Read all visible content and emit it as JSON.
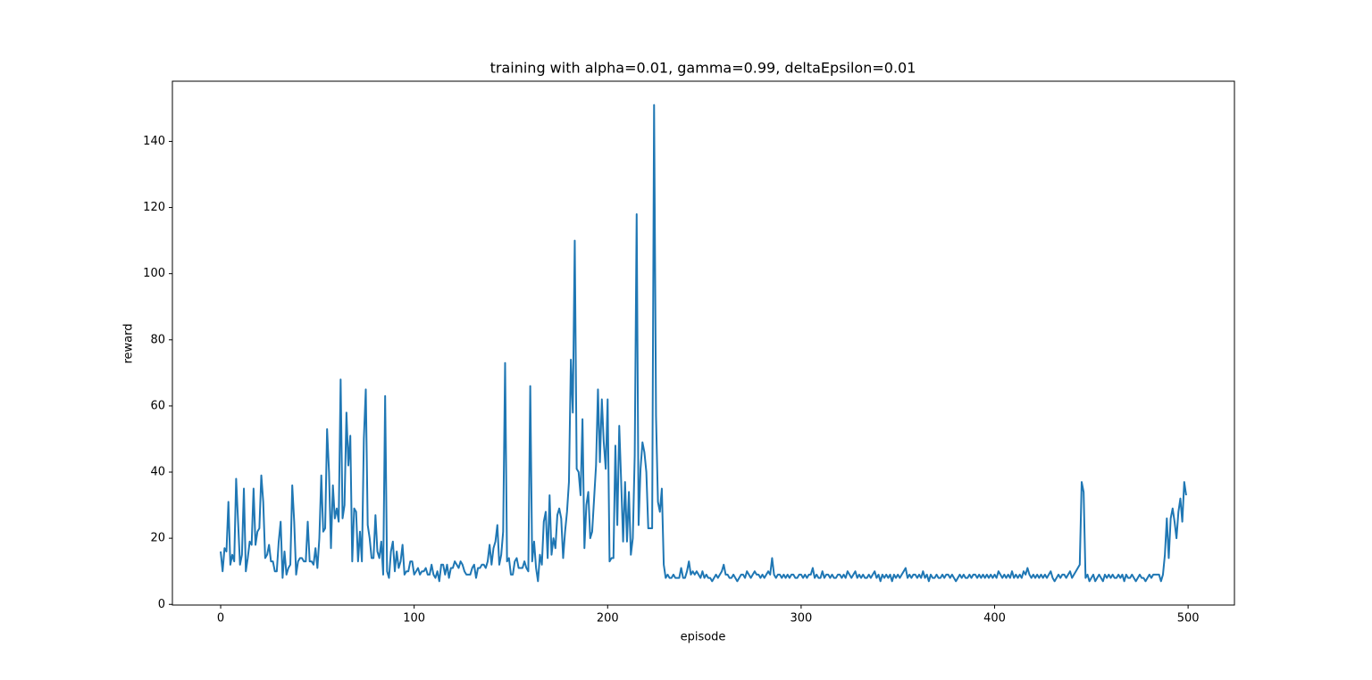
{
  "chart_data": {
    "type": "line",
    "title": "training with alpha=0.01, gamma=0.99, deltaEpsilon=0.01",
    "xlabel": "episode",
    "ylabel": "reward",
    "color": "#1f77b4",
    "xlim": [
      -24.95,
      523.95
    ],
    "xticks": [
      0,
      100,
      200,
      300,
      400,
      500
    ],
    "ylim": [
      -0.2,
      158.2
    ],
    "yticks": [
      0,
      20,
      40,
      60,
      80,
      100,
      120,
      140
    ],
    "values": [
      16,
      10,
      17,
      16,
      31,
      12,
      15,
      13,
      38,
      25,
      12,
      15,
      35,
      10,
      14,
      19,
      18,
      35,
      18,
      22,
      23,
      39,
      31,
      14,
      15,
      18,
      13,
      13,
      10,
      10,
      19,
      25,
      8,
      16,
      9,
      11,
      12,
      36,
      25,
      9,
      13,
      14,
      14,
      13,
      13,
      25,
      13,
      13,
      12,
      17,
      11,
      20,
      39,
      22,
      23,
      53,
      40,
      17,
      36,
      26,
      29,
      25,
      68,
      26,
      30,
      58,
      42,
      51,
      13,
      29,
      28,
      13,
      22,
      13,
      50,
      65,
      24,
      20,
      14,
      14,
      27,
      16,
      14,
      19,
      9,
      63,
      10,
      8,
      16,
      19,
      10,
      16,
      11,
      13,
      18,
      9,
      10,
      10,
      13,
      13,
      9,
      10,
      11,
      9,
      10,
      10,
      11,
      9,
      9,
      12,
      9,
      8,
      10,
      7,
      12,
      12,
      9,
      12,
      8,
      11,
      11,
      13,
      12,
      11,
      13,
      12,
      10,
      9,
      9,
      9,
      11,
      12,
      8,
      11,
      11,
      12,
      12,
      11,
      13,
      18,
      12,
      17,
      19,
      24,
      12,
      15,
      22,
      73,
      13,
      14,
      9,
      9,
      13,
      14,
      11,
      11,
      11,
      13,
      11,
      10,
      66,
      13,
      19,
      11,
      7,
      15,
      12,
      25,
      28,
      14,
      33,
      15,
      20,
      17,
      27,
      29,
      26,
      14,
      22,
      28,
      37,
      74,
      58,
      110,
      41,
      40,
      33,
      56,
      17,
      30,
      34,
      20,
      22,
      32,
      42,
      65,
      43,
      62,
      49,
      41,
      62,
      13,
      14,
      14,
      48,
      24,
      54,
      37,
      19,
      37,
      19,
      34,
      15,
      20,
      45,
      118,
      24,
      41,
      49,
      46,
      40,
      23,
      23,
      23,
      151,
      57,
      31,
      28,
      35,
      12,
      8,
      9,
      8,
      8,
      9,
      8,
      8,
      8,
      11,
      8,
      8,
      10,
      13,
      9,
      10,
      9,
      10,
      9,
      8,
      10,
      8,
      9,
      8,
      8,
      7,
      8,
      9,
      8,
      9,
      10,
      12,
      9,
      9,
      8,
      8,
      9,
      8,
      7,
      8,
      9,
      9,
      8,
      10,
      9,
      8,
      9,
      10,
      9,
      9,
      8,
      9,
      8,
      9,
      10,
      9,
      14,
      9,
      8,
      9,
      9,
      8,
      9,
      8,
      9,
      8,
      9,
      9,
      8,
      8,
      9,
      9,
      8,
      9,
      8,
      9,
      9,
      11,
      8,
      9,
      8,
      8,
      10,
      8,
      9,
      9,
      8,
      9,
      8,
      8,
      9,
      9,
      8,
      9,
      8,
      10,
      9,
      8,
      9,
      10,
      8,
      9,
      8,
      9,
      8,
      8,
      9,
      8,
      9,
      10,
      8,
      9,
      7,
      9,
      8,
      9,
      8,
      9,
      7,
      9,
      8,
      9,
      8,
      9,
      10,
      11,
      8,
      9,
      8,
      9,
      9,
      8,
      9,
      8,
      10,
      8,
      9,
      7,
      9,
      8,
      8,
      9,
      8,
      8,
      9,
      8,
      9,
      9,
      8,
      9,
      8,
      7,
      8,
      9,
      8,
      9,
      8,
      8,
      9,
      8,
      9,
      9,
      8,
      9,
      8,
      9,
      8,
      9,
      8,
      9,
      8,
      9,
      8,
      10,
      9,
      8,
      9,
      8,
      9,
      8,
      10,
      8,
      9,
      8,
      9,
      8,
      10,
      9,
      11,
      9,
      8,
      9,
      8,
      9,
      8,
      9,
      8,
      9,
      8,
      9,
      10,
      8,
      7,
      8,
      9,
      8,
      9,
      9,
      8,
      9,
      10,
      8,
      9,
      10,
      11,
      12,
      37,
      34,
      8,
      9,
      7,
      8,
      9,
      7,
      8,
      9,
      8,
      7,
      9,
      8,
      9,
      8,
      9,
      8,
      8,
      9,
      8,
      9,
      7,
      9,
      8,
      8,
      9,
      8,
      7,
      8,
      9,
      8,
      8,
      7,
      8,
      9,
      8,
      9,
      9,
      9,
      9,
      7,
      9,
      15,
      26,
      14,
      26,
      29,
      25,
      20,
      28,
      32,
      25,
      37,
      33
    ]
  }
}
